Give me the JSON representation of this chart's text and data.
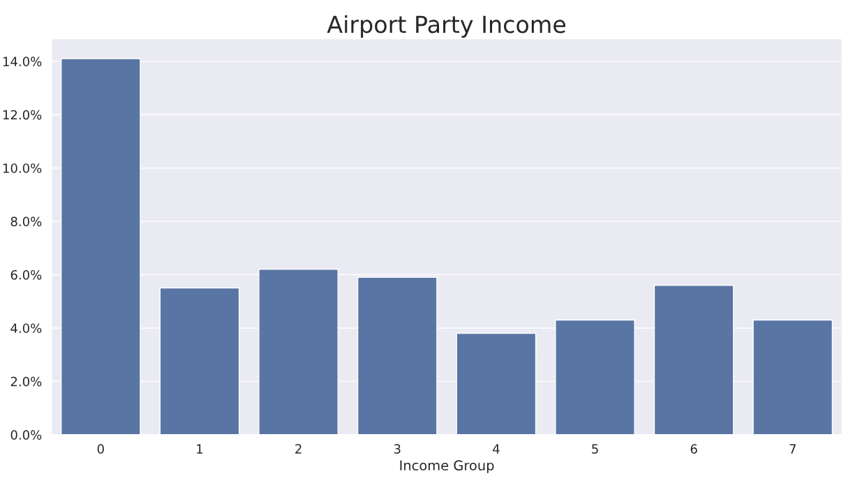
{
  "chart_data": {
    "type": "bar",
    "title": "Airport Party Income",
    "xlabel": "Income Group",
    "categories": [
      "0",
      "1",
      "2",
      "3",
      "4",
      "5",
      "6",
      "7"
    ],
    "values": [
      14.1,
      5.5,
      6.2,
      5.9,
      3.8,
      4.3,
      5.6,
      4.3
    ],
    "color": "#5975a4",
    "ylim": [
      0,
      14.85
    ],
    "yticks": [
      {
        "value": 0,
        "label": "0.0%"
      },
      {
        "value": 2,
        "label": "2.0%"
      },
      {
        "value": 4,
        "label": "4.0%"
      },
      {
        "value": 6,
        "label": "6.0%"
      },
      {
        "value": 8,
        "label": "8.0%"
      },
      {
        "value": 10,
        "label": "10.0%"
      },
      {
        "value": 12,
        "label": "12.0%"
      },
      {
        "value": 14,
        "label": "14.0%"
      }
    ],
    "grid": "y"
  }
}
